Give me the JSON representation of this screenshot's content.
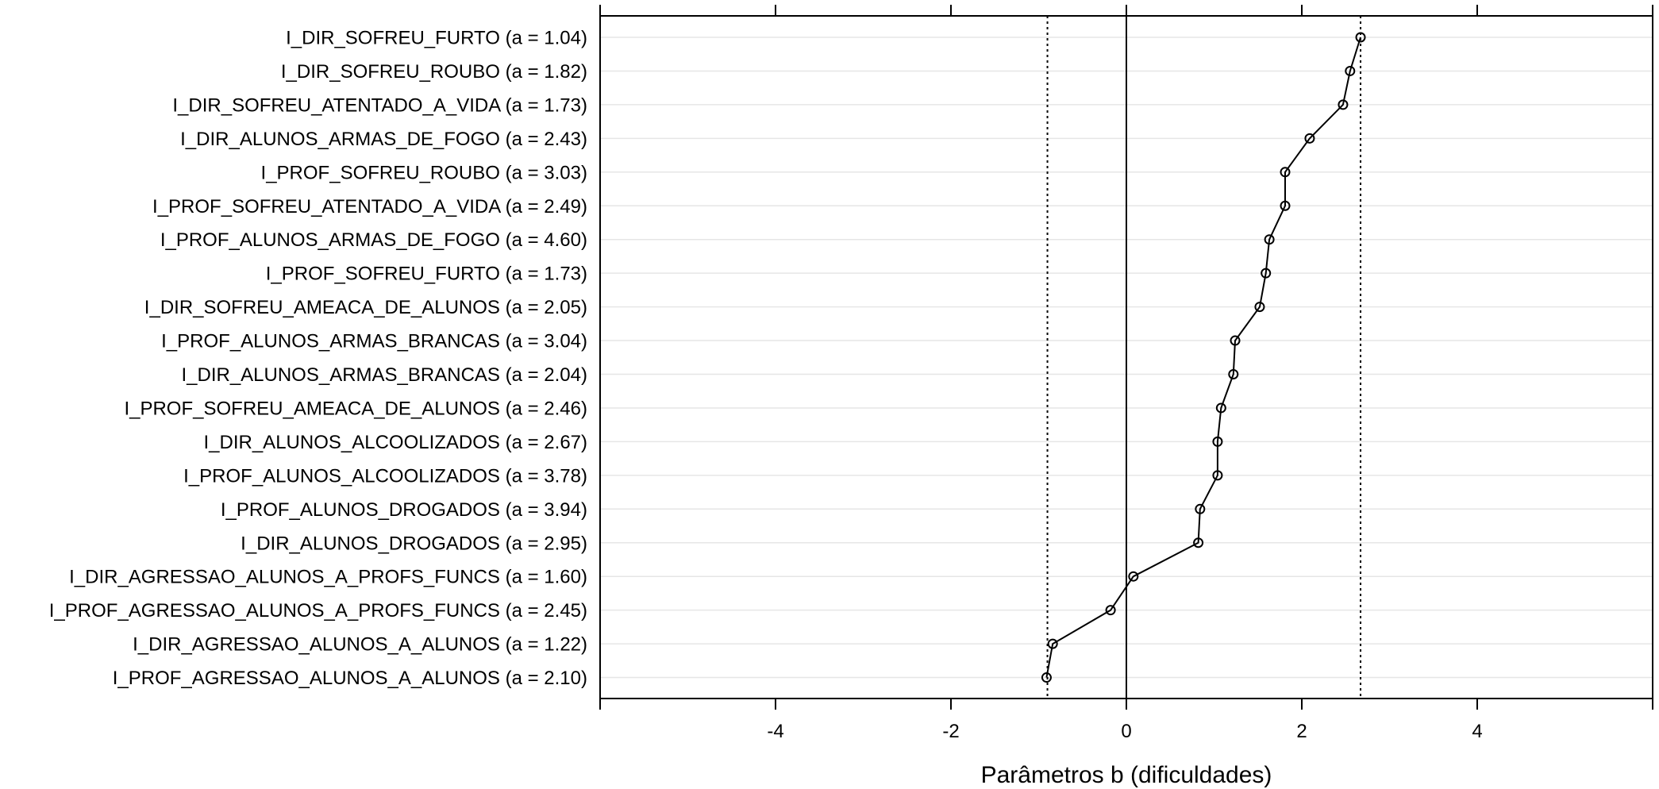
{
  "chart_data": {
    "type": "dot-line",
    "xlabel": "Parâmetros b (dificuldades)",
    "ylabel": "",
    "xlim": [
      -6,
      6
    ],
    "xticks": [
      -4,
      -2,
      0,
      2,
      4
    ],
    "xtick_labels": [
      "-4",
      "-2",
      "0",
      "2",
      "4"
    ],
    "reference_lines": {
      "solid": [
        0
      ],
      "dotted": [
        -0.9,
        2.67
      ]
    },
    "grid": "horizontal",
    "items": [
      {
        "label": "I_DIR_SOFREU_FURTO (a = 1.04)",
        "b": 2.67
      },
      {
        "label": "I_DIR_SOFREU_ROUBO (a = 1.82)",
        "b": 2.55
      },
      {
        "label": "I_DIR_SOFREU_ATENTADO_A_VIDA (a = 1.73)",
        "b": 2.47
      },
      {
        "label": "I_DIR_ALUNOS_ARMAS_DE_FOGO (a = 2.43)",
        "b": 2.09
      },
      {
        "label": "I_PROF_SOFREU_ROUBO (a = 3.03)",
        "b": 1.81
      },
      {
        "label": "I_PROF_SOFREU_ATENTADO_A_VIDA (a = 2.49)",
        "b": 1.81
      },
      {
        "label": "I_PROF_ALUNOS_ARMAS_DE_FOGO (a = 4.60)",
        "b": 1.63
      },
      {
        "label": "I_PROF_SOFREU_FURTO (a = 1.73)",
        "b": 1.59
      },
      {
        "label": "I_DIR_SOFREU_AMEACA_DE_ALUNOS (a = 2.05)",
        "b": 1.52
      },
      {
        "label": "I_PROF_ALUNOS_ARMAS_BRANCAS (a = 3.04)",
        "b": 1.24
      },
      {
        "label": "I_DIR_ALUNOS_ARMAS_BRANCAS (a = 2.04)",
        "b": 1.22
      },
      {
        "label": "I_PROF_SOFREU_AMEACA_DE_ALUNOS (a = 2.46)",
        "b": 1.08
      },
      {
        "label": "I_DIR_ALUNOS_ALCOOLIZADOS (a = 2.67)",
        "b": 1.04
      },
      {
        "label": "I_PROF_ALUNOS_ALCOOLIZADOS (a = 3.78)",
        "b": 1.04
      },
      {
        "label": "I_PROF_ALUNOS_DROGADOS (a = 3.94)",
        "b": 0.84
      },
      {
        "label": "I_DIR_ALUNOS_DROGADOS (a = 2.95)",
        "b": 0.82
      },
      {
        "label": "I_DIR_AGRESSAO_ALUNOS_A_PROFS_FUNCS (a = 1.60)",
        "b": 0.08
      },
      {
        "label": "I_PROF_AGRESSAO_ALUNOS_A_PROFS_FUNCS (a = 2.45)",
        "b": -0.18
      },
      {
        "label": "I_DIR_AGRESSAO_ALUNOS_A_ALUNOS (a = 1.22)",
        "b": -0.84
      },
      {
        "label": "I_PROF_AGRESSAO_ALUNOS_A_ALUNOS (a = 2.10)",
        "b": -0.91
      }
    ]
  }
}
